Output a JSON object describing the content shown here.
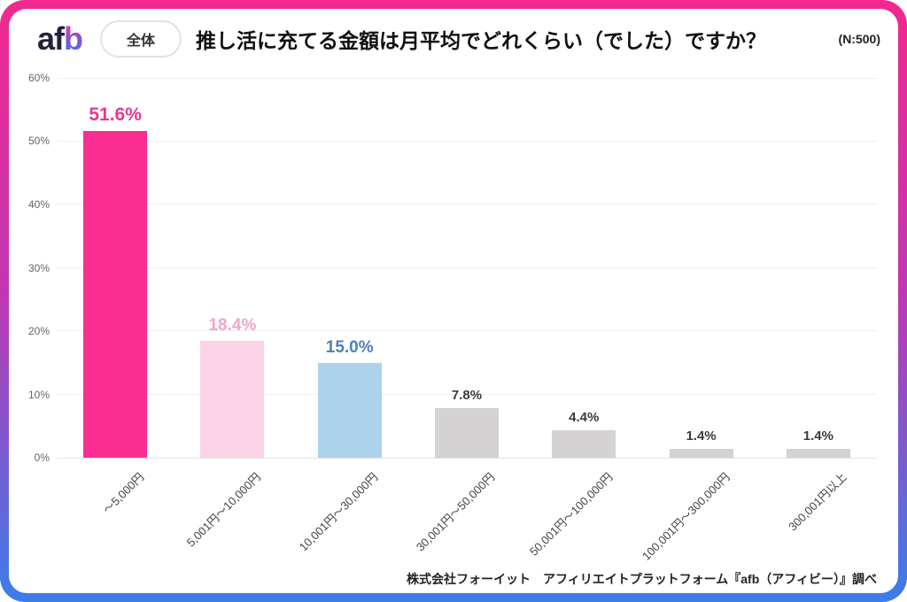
{
  "header": {
    "logo_part1": "af",
    "logo_part2": "b",
    "badge_label": "全体",
    "title": "推し活に充てる金額は月平均でどれくらい（でした）ですか？",
    "n_label": "(N:500)"
  },
  "footer": {
    "source_credit": "株式会社フォーイット　アフィリエイトプラットフォーム『afb（アフィビー）』調べ"
  },
  "colors": {
    "frame_gradient_top": "#F2298E",
    "frame_gradient_mid": "#C136B2",
    "frame_gradient_bottom": "#3B7DE9",
    "grid_line": "#EFEFEF",
    "zero_line": "#E2E2E2",
    "y_tick_text": "#666666",
    "x_tick_text": "#444444"
  },
  "chart_data": {
    "type": "bar",
    "title": "推し活に充てる金額は月平均でどれくらい（でした）ですか？",
    "sample_size": "N:500",
    "categories": [
      "～5,000円",
      "5,001円～10,000円",
      "10,001円～30,000円",
      "30,001円～50,000円",
      "50,001円～100,000円",
      "100,001円～300,000円",
      "300,001円以上"
    ],
    "values": [
      51.6,
      18.4,
      15.0,
      7.8,
      4.4,
      1.4,
      1.4
    ],
    "value_labels": [
      "51.6%",
      "18.4%",
      "15.0%",
      "7.8%",
      "4.4%",
      "1.4%",
      "1.4%"
    ],
    "bar_colors": [
      "#FA2D90",
      "#FBD3E7",
      "#ACD2EC",
      "#D4D2D2",
      "#D4D2D2",
      "#D4D2D2",
      "#D4D2D2"
    ],
    "value_label_colors": [
      "#E8378F",
      "#F0A6C9",
      "#4F80B7",
      "#3A3A3A",
      "#3A3A3A",
      "#3A3A3A",
      "#3A3A3A"
    ],
    "value_label_sizes": [
      21,
      19,
      19,
      15,
      15,
      15,
      15
    ],
    "xlabel": "",
    "ylabel": "",
    "ylim": [
      0,
      60
    ],
    "yticks": [
      0,
      10,
      20,
      30,
      40,
      50,
      60
    ],
    "ytick_suffix": "%",
    "grid": true,
    "legend": false
  }
}
